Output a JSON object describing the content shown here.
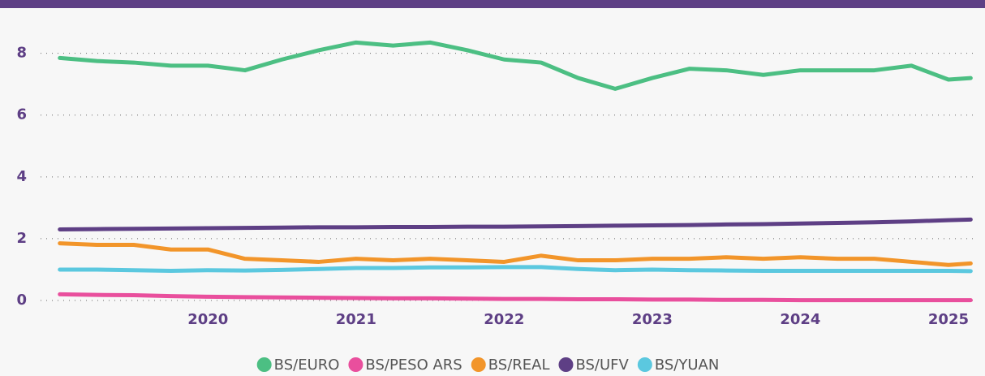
{
  "chart_data": {
    "type": "line",
    "x": [
      2019,
      2019.25,
      2019.5,
      2019.75,
      2020,
      2020.25,
      2020.5,
      2020.75,
      2021,
      2021.25,
      2021.5,
      2021.75,
      2022,
      2022.25,
      2022.5,
      2022.75,
      2023,
      2023.25,
      2023.5,
      2023.75,
      2024,
      2024.25,
      2024.5,
      2024.75,
      2025,
      2025.15
    ],
    "series": [
      {
        "name": "BS/EURO",
        "color": "#4cbf83",
        "values": [
          7.85,
          7.75,
          7.7,
          7.6,
          7.6,
          7.45,
          7.8,
          8.1,
          8.35,
          8.25,
          8.35,
          8.1,
          7.8,
          7.7,
          7.2,
          6.85,
          7.2,
          7.5,
          7.45,
          7.3,
          7.45,
          7.45,
          7.45,
          7.6,
          7.15,
          7.2
        ]
      },
      {
        "name": "BS/PESO ARS",
        "color": "#e94f9d",
        "values": [
          0.2,
          0.18,
          0.17,
          0.14,
          0.12,
          0.11,
          0.1,
          0.09,
          0.08,
          0.07,
          0.07,
          0.06,
          0.05,
          0.05,
          0.04,
          0.04,
          0.03,
          0.03,
          0.02,
          0.02,
          0.01,
          0.01,
          0.01,
          0.01,
          0.01,
          0.01
        ]
      },
      {
        "name": "BS/REAL",
        "color": "#f2952a",
        "values": [
          1.85,
          1.8,
          1.8,
          1.65,
          1.65,
          1.35,
          1.3,
          1.25,
          1.35,
          1.3,
          1.35,
          1.3,
          1.25,
          1.45,
          1.3,
          1.3,
          1.35,
          1.35,
          1.4,
          1.35,
          1.4,
          1.35,
          1.35,
          1.25,
          1.15,
          1.2
        ]
      },
      {
        "name": "BS/UFV",
        "color": "#5e3f85",
        "values": [
          2.3,
          2.31,
          2.32,
          2.33,
          2.34,
          2.35,
          2.36,
          2.37,
          2.37,
          2.38,
          2.38,
          2.39,
          2.39,
          2.4,
          2.41,
          2.42,
          2.43,
          2.44,
          2.46,
          2.47,
          2.49,
          2.51,
          2.53,
          2.56,
          2.6,
          2.62
        ]
      },
      {
        "name": "BS/YUAN",
        "color": "#5bc8df",
        "values": [
          1.0,
          1.0,
          0.98,
          0.96,
          0.98,
          0.97,
          0.99,
          1.02,
          1.05,
          1.05,
          1.07,
          1.07,
          1.08,
          1.08,
          1.02,
          0.98,
          1.0,
          0.98,
          0.97,
          0.96,
          0.96,
          0.96,
          0.96,
          0.96,
          0.96,
          0.95
        ]
      }
    ],
    "xlim": [
      2018.87,
      2025.17
    ],
    "xticks": [
      2020,
      2021,
      2022,
      2023,
      2024,
      2025
    ],
    "ylim": [
      0,
      9.2
    ],
    "yticks": [
      0,
      2,
      4,
      6,
      8
    ],
    "grid": true,
    "legend": "bottom"
  }
}
